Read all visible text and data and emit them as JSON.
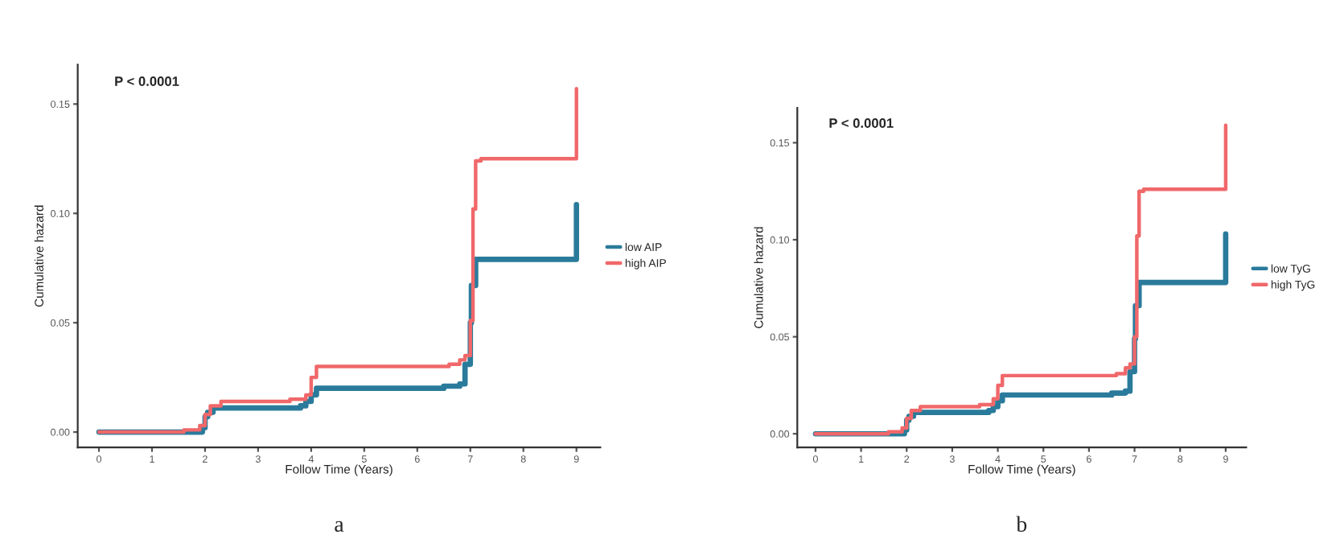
{
  "chart_data": [
    {
      "type": "step",
      "xlabel": "Follow Time (Years)",
      "ylabel": "Cumulative hazard",
      "annotations": [
        "P < 0.0001",
        "a"
      ],
      "xlim": [
        -0.4,
        9.45
      ],
      "ylim": [
        -0.007,
        0.168
      ],
      "xticks": [
        0,
        1,
        2,
        3,
        4,
        5,
        6,
        7,
        8,
        9
      ],
      "yticks": [
        {
          "value": 0,
          "label": "0.00"
        },
        {
          "value": 0.05,
          "label": "0.05"
        },
        {
          "value": 0.1,
          "label": "0.10"
        },
        {
          "value": 0.15,
          "label": "0.15"
        }
      ],
      "grid": false,
      "legend": "right",
      "series": [
        {
          "name": "low AIP",
          "color": "#2a7b9b",
          "x": [
            0,
            1.95,
            2.0,
            2.05,
            2.15,
            3.8,
            3.9,
            4.0,
            4.1,
            6.5,
            6.8,
            6.9,
            7.0,
            7.02,
            7.1,
            9
          ],
          "values": [
            0,
            0.002,
            0.007,
            0.009,
            0.011,
            0.012,
            0.014,
            0.017,
            0.02,
            0.021,
            0.022,
            0.031,
            0.05,
            0.067,
            0.079,
            0.104
          ]
        },
        {
          "name": "high AIP",
          "color": "#f0686a",
          "x": [
            0,
            1.6,
            1.9,
            2.0,
            2.1,
            2.3,
            3.6,
            3.9,
            4.0,
            4.1,
            6.6,
            6.8,
            6.9,
            7.0,
            7.05,
            7.1,
            7.2,
            9
          ],
          "values": [
            0,
            0.001,
            0.003,
            0.008,
            0.012,
            0.014,
            0.015,
            0.017,
            0.025,
            0.03,
            0.031,
            0.033,
            0.035,
            0.051,
            0.102,
            0.124,
            0.125,
            0.157
          ]
        }
      ]
    },
    {
      "type": "step",
      "xlabel": "Follow Time (Years)",
      "ylabel": "Cumulative hazard",
      "annotations": [
        "P < 0.0001",
        "b"
      ],
      "xlim": [
        -0.4,
        9.45
      ],
      "ylim": [
        -0.007,
        0.168
      ],
      "xticks": [
        0,
        1,
        2,
        3,
        4,
        5,
        6,
        7,
        8,
        9
      ],
      "yticks": [
        {
          "value": 0,
          "label": "0.00"
        },
        {
          "value": 0.05,
          "label": "0.05"
        },
        {
          "value": 0.1,
          "label": "0.10"
        },
        {
          "value": 0.15,
          "label": "0.15"
        }
      ],
      "grid": false,
      "legend": "right",
      "series": [
        {
          "name": "low TyG",
          "color": "#2a7b9b",
          "x": [
            0,
            1.95,
            2.0,
            2.05,
            2.15,
            3.8,
            3.9,
            4.0,
            4.1,
            6.5,
            6.8,
            6.9,
            7.0,
            7.02,
            7.1,
            9
          ],
          "values": [
            0,
            0.002,
            0.007,
            0.009,
            0.011,
            0.012,
            0.014,
            0.017,
            0.02,
            0.021,
            0.022,
            0.032,
            0.049,
            0.066,
            0.078,
            0.103
          ]
        },
        {
          "name": "high TyG",
          "color": "#f0686a",
          "x": [
            0,
            1.6,
            1.9,
            2.0,
            2.1,
            2.3,
            3.6,
            3.9,
            4.0,
            4.1,
            6.6,
            6.8,
            6.9,
            7.0,
            7.05,
            7.1,
            7.2,
            9
          ],
          "values": [
            0,
            0.001,
            0.003,
            0.008,
            0.012,
            0.014,
            0.015,
            0.018,
            0.025,
            0.03,
            0.031,
            0.034,
            0.036,
            0.05,
            0.102,
            0.125,
            0.126,
            0.159
          ]
        }
      ]
    }
  ]
}
